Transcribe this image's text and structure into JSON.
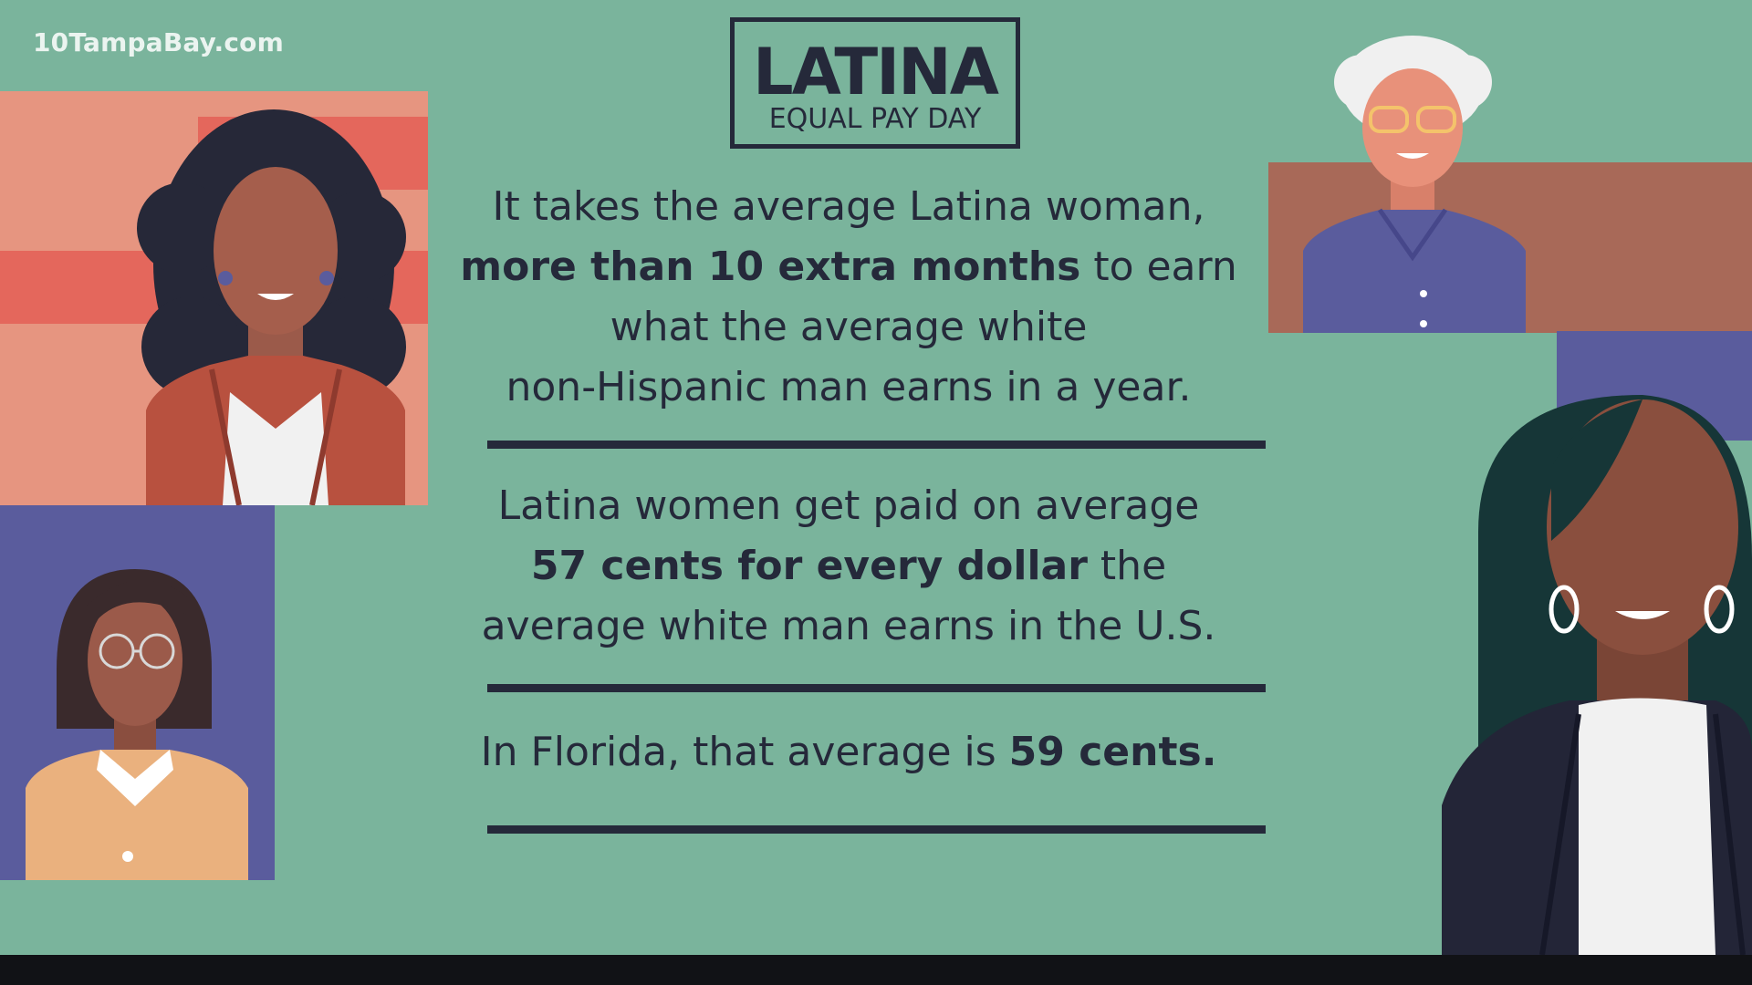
{
  "watermark": "10TampaBay.com",
  "title": {
    "main": "LATINA",
    "sub": "EQUAL PAY DAY"
  },
  "paragraph1": {
    "line1": "It takes the average Latina woman,",
    "line2_bold": "more than 10 extra months",
    "line2_rest": " to earn",
    "line3": "what the average white",
    "line4": "non-Hispanic man earns in a year."
  },
  "paragraph2": {
    "line1": "Latina women get paid on average",
    "line2_bold": "57 cents for every dollar",
    "line2_rest": " the",
    "line3": "average white man earns in the U.S."
  },
  "paragraph3": {
    "text": "In Florida, that average is ",
    "bold": "59 cents."
  },
  "colors": {
    "background": "#7ab49c",
    "text": "#25293a",
    "salmon": "#e69580",
    "red_stripe": "#e4675c",
    "purple": "#5a5c9d",
    "brown_panel": "#a86958",
    "bottom_bar": "#111216"
  },
  "illustrations": [
    "woman-curly-hair-red-blazer",
    "woman-glasses-bob-hair-yellow-shirt",
    "older-woman-white-hair-glasses-blue-shirt",
    "woman-long-hair-hoop-earrings-dark-blazer"
  ]
}
